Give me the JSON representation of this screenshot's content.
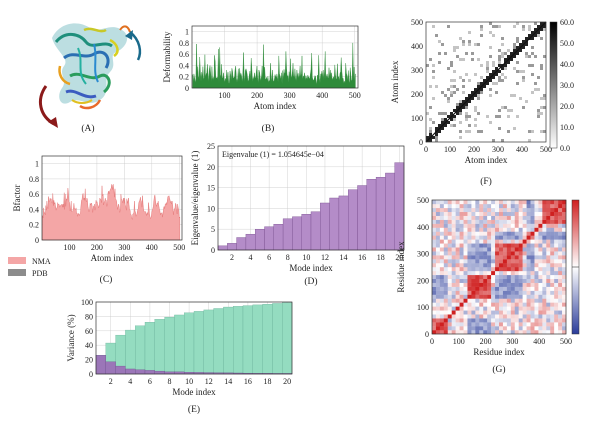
{
  "panels": [
    {
      "id": "A",
      "label": "(A)"
    },
    {
      "id": "B",
      "label": "(B)"
    },
    {
      "id": "C",
      "label": "(C)"
    },
    {
      "id": "D",
      "label": "(D)"
    },
    {
      "id": "E",
      "label": "(E)"
    },
    {
      "id": "F",
      "label": "(F)"
    },
    {
      "id": "G",
      "label": "(G)"
    }
  ],
  "colors": {
    "deformability": "#2e8b3a",
    "nma": "#f4a6a6",
    "nma_line": "#e06a6a",
    "pdb": "#8c8c8c",
    "eigen": "#b48cc8",
    "eigen_edge": "#7a5090",
    "cumulative": "#94dcc0",
    "individual": "#9b76b8"
  },
  "chart_data": [
    {
      "panel": "B",
      "type": "area",
      "xlabel": "Atom index",
      "ylabel": "Deformability",
      "xlim": [
        0,
        510
      ],
      "ylim": [
        0,
        1.1
      ],
      "xticks": [
        100,
        200,
        300,
        400,
        500
      ],
      "yticks": [
        "0",
        "0.2",
        "0.4",
        "0.6",
        "0.8",
        "1"
      ],
      "grid": true,
      "series": [
        {
          "values": [
            0.24,
            0.1,
            0.25,
            0.18,
            0.09,
            0.17,
            0.78,
            0.25,
            0.38,
            0.21,
            0.16,
            0.55,
            0.28,
            0.12,
            0.28,
            0.21,
            0.38,
            0.14,
            0.19,
            0.59,
            0.19,
            0.25,
            0.27,
            0.42,
            0.24,
            0.1,
            0.34,
            0.4,
            0.25,
            0.1,
            0.38,
            0.14,
            0.19,
            0.13,
            0.58,
            0.47,
            0.17,
            0.18,
            0.19,
            0.15,
            0.69,
            0.08,
            0.72,
            0.24,
            0.19,
            0.42,
            0.18,
            0.18,
            0.27,
            0.16,
            0.1,
            0.17,
            0.14,
            0.32,
            0.13,
            0.28,
            0.09,
            0.08,
            0.3,
            0.24,
            0.13,
            0.35,
            0.3,
            0.17,
            0.18,
            0.2,
            0.33,
            0.39,
            0.17,
            0.1,
            0.18,
            0.34,
            0.11,
            0.35,
            0.21,
            0.26,
            0.22,
            0.1,
            0.23,
            0.63,
            0.27,
            0.1,
            0.31,
            0.34,
            0.29,
            0.23,
            0.11,
            0.14,
            0.23,
            0.3,
            0.14,
            0.53,
            0.36,
            0.11,
            0.19,
            0.14,
            0.27,
            0.19,
            0.17,
            0.29,
            0.39,
            0.19,
            0.08,
            0.32,
            0.28,
            0.19,
            0.12,
            0.21,
            0.39,
            0.14,
            0.77,
            0.32,
            0.37,
            0.15,
            0.16,
            0.19,
            0.13,
            0.21,
            0.1,
            0.13,
            0.14,
            0.44,
            0.23,
            0.1,
            0.32,
            0.14,
            0.11,
            0.14,
            0.24,
            0.21,
            0.18,
            0.25,
            0.17,
            0.1,
            0.57,
            0.25,
            0.21,
            0.15,
            0.27,
            0.07,
            0.31,
            0.15,
            0.33,
            0.25,
            0.28,
            0.65,
            0.34,
            0.21,
            0.22,
            0.1,
            0.29,
            0.17,
            0.52,
            0.21,
            0.18,
            0.29,
            0.44,
            0.22,
            0.18,
            0.34,
            0.17,
            0.12,
            0.32,
            0.2,
            0.26,
            0.17,
            0.22,
            0.39,
            0.2,
            0.25,
            0.57,
            0.15,
            0.21,
            0.21,
            0.27,
            0.13,
            0.22,
            0.18,
            0.15,
            0.23,
            0.2,
            0.18,
            0.15,
            0.25,
            0.33,
            0.62,
            0.2,
            0.14,
            0.14,
            0.16,
            0.22,
            0.21,
            0.11,
            0.06,
            0.23,
            0.19,
            0.58,
            0.17,
            0.09,
            0.25,
            0.24,
            0.3,
            0.18,
            0.32,
            0.14,
            0.29,
            0.65,
            0.16,
            0.21,
            0.25,
            0.19,
            0.17,
            0.36,
            0.18,
            0.32,
            0.19,
            0.27,
            0.14,
            0.17,
            0.2,
            0.14,
            0.41,
            0.23,
            0.15,
            0.17,
            0.43,
            0.2,
            0.2,
            0.12,
            0.26,
            0.29,
            0.54,
            0.29,
            0.17,
            0.17,
            0.08,
            0.12,
            0.09,
            0.44,
            0.26,
            0.22,
            0.12,
            0.31,
            0.12,
            0.09,
            0.36,
            0.23,
            0.12,
            0.15,
            0.8,
            0.15,
            0.37,
            0.09,
            0.25
          ]
        }
      ]
    },
    {
      "panel": "C",
      "type": "area",
      "xlabel": "Atom index",
      "ylabel": "Bfactor",
      "xlim": [
        0,
        510
      ],
      "ylim": [
        0,
        1.1
      ],
      "xticks": [
        100,
        200,
        300,
        400,
        500
      ],
      "yticks": [
        "0",
        "0.2",
        "0.4",
        "0.6",
        "0.8",
        "1"
      ],
      "grid": true,
      "legend": [
        "NMA",
        "PDB"
      ],
      "series": [
        {
          "name": "NMA",
          "values": [
            0.32,
            0.29,
            0.42,
            0.35,
            0.36,
            0.33,
            0.45,
            0.39,
            0.51,
            0.44,
            0.41,
            0.57,
            0.5,
            0.51,
            0.55,
            0.52,
            0.54,
            0.49,
            0.48,
            0.61,
            0.45,
            0.52,
            0.47,
            0.49,
            0.45,
            0.39,
            0.42,
            0.42,
            0.49,
            0.46,
            0.47,
            0.46,
            0.43,
            0.45,
            0.46,
            0.46,
            0.47,
            0.43,
            0.47,
            0.43,
            0.62,
            0.4,
            0.6,
            0.44,
            0.54,
            0.52,
            0.58,
            0.68,
            0.61,
            0.5,
            0.49,
            0.38,
            0.42,
            0.51,
            0.37,
            0.37,
            0.38,
            0.42,
            0.48,
            0.42,
            0.4,
            0.4,
            0.42,
            0.35,
            0.35,
            0.31,
            0.35,
            0.34,
            0.32,
            0.34,
            0.35,
            0.44,
            0.52,
            0.53,
            0.59,
            0.61,
            0.53,
            0.55,
            0.52,
            0.67,
            0.52,
            0.5,
            0.55,
            0.53,
            0.44,
            0.4,
            0.37,
            0.4,
            0.48,
            0.46,
            0.48,
            0.48,
            0.43,
            0.36,
            0.44,
            0.44,
            0.47,
            0.39,
            0.44,
            0.52,
            0.49,
            0.5,
            0.46,
            0.45,
            0.42,
            0.45,
            0.55,
            0.53,
            0.53,
            0.49,
            0.71,
            0.58,
            0.6,
            0.46,
            0.5,
            0.5,
            0.55,
            0.52,
            0.52,
            0.44,
            0.48,
            0.61,
            0.64,
            0.6,
            0.64,
            0.65,
            0.67,
            0.68,
            0.73,
            0.66,
            0.72,
            0.73,
            0.65,
            0.56,
            0.67,
            0.54,
            0.53,
            0.51,
            0.44,
            0.4,
            0.46,
            0.47,
            0.42,
            0.36,
            0.4,
            0.6,
            0.54,
            0.53,
            0.49,
            0.51,
            0.55,
            0.48,
            0.55,
            0.46,
            0.44,
            0.39,
            0.54,
            0.48,
            0.51,
            0.55,
            0.46,
            0.4,
            0.39,
            0.33,
            0.33,
            0.29,
            0.27,
            0.34,
            0.34,
            0.36,
            0.51,
            0.37,
            0.37,
            0.31,
            0.33,
            0.35,
            0.4,
            0.41,
            0.48,
            0.51,
            0.52,
            0.56,
            0.52,
            0.51,
            0.43,
            0.58,
            0.46,
            0.4,
            0.37,
            0.37,
            0.37,
            0.37,
            0.32,
            0.34,
            0.36,
            0.33,
            0.49,
            0.42,
            0.34,
            0.3,
            0.28,
            0.3,
            0.36,
            0.39,
            0.41,
            0.44,
            0.52,
            0.57,
            0.59,
            0.52,
            0.46,
            0.44,
            0.48,
            0.47,
            0.51,
            0.46,
            0.41,
            0.39,
            0.33,
            0.35,
            0.34,
            0.36,
            0.3,
            0.35,
            0.42,
            0.44,
            0.41,
            0.47,
            0.47,
            0.49,
            0.46,
            0.53,
            0.57,
            0.57,
            0.58,
            0.55,
            0.52,
            0.49,
            0.51,
            0.47,
            0.51,
            0.44,
            0.33,
            0.38,
            0.41,
            0.41,
            0.48,
            0.47,
            0.4,
            0.34,
            0.47,
            0.42,
            0.4,
            0.29,
            0.3
          ]
        }
      ]
    },
    {
      "panel": "D",
      "type": "bar",
      "xlabel": "Mode index",
      "ylabel": "Eigenvalue/eigenvalue (1)",
      "annotation": "Eigenvalue (1) = 1.054645e−04",
      "categories": [
        1,
        2,
        3,
        4,
        5,
        6,
        7,
        8,
        9,
        10,
        11,
        12,
        13,
        14,
        15,
        16,
        17,
        18,
        19,
        20
      ],
      "values": [
        1,
        1.6,
        3,
        3.8,
        5,
        5.6,
        6.2,
        7.5,
        8,
        8.6,
        9.2,
        11.3,
        12.5,
        13,
        14.5,
        15.5,
        17,
        17.5,
        18.5,
        21
      ],
      "ylim": [
        0,
        25
      ],
      "xticks": [
        2,
        4,
        6,
        8,
        10,
        12,
        14,
        16,
        18,
        20
      ],
      "yticks": [
        0,
        5,
        10,
        15,
        20,
        25
      ],
      "grid": true
    },
    {
      "panel": "E",
      "type": "bar",
      "xlabel": "Mode index",
      "ylabel": "Variance (%)",
      "categories": [
        1,
        2,
        3,
        4,
        5,
        6,
        7,
        8,
        9,
        10,
        11,
        12,
        13,
        14,
        15,
        16,
        17,
        18,
        19,
        20
      ],
      "series": [
        {
          "values": [
            26,
            43,
            54,
            61,
            67,
            72,
            76,
            79,
            82,
            85,
            87,
            89,
            91,
            93,
            94,
            95,
            96,
            97,
            98,
            99
          ]
        },
        {
          "values": [
            26,
            17,
            11,
            7,
            6,
            5,
            4,
            3,
            3,
            2.5,
            2.2,
            2,
            1.8,
            1.6,
            1.4,
            1.2,
            1,
            1,
            0.8,
            0.8
          ]
        }
      ],
      "ylim": [
        0,
        100
      ],
      "xticks": [
        2,
        4,
        6,
        8,
        10,
        12,
        14,
        16,
        18,
        20
      ],
      "yticks": [
        0,
        20,
        40,
        60,
        80,
        100
      ],
      "grid": true
    },
    {
      "panel": "F",
      "type": "heatmap",
      "xlabel": "Atom index",
      "ylabel": "Atom index",
      "xticks": [
        0,
        100,
        200,
        300,
        400,
        500
      ],
      "yticks": [
        0,
        100,
        200,
        300,
        400,
        500
      ],
      "colorbar": {
        "ticks": [
          "60.0",
          "50.0",
          "40.0",
          "30.0",
          "20.0",
          "10.0",
          "0.0"
        ],
        "min": 0,
        "max": 60
      }
    },
    {
      "panel": "G",
      "type": "heatmap",
      "xlabel": "Residue index",
      "ylabel": "Residue index",
      "xticks": [
        0,
        100,
        200,
        300,
        400,
        500
      ],
      "yticks": [
        0,
        100,
        200,
        300,
        400,
        500
      ],
      "colorbar": {
        "colors": [
          "#cf2020",
          "#ffffff",
          "#2a3c9a"
        ]
      }
    }
  ]
}
